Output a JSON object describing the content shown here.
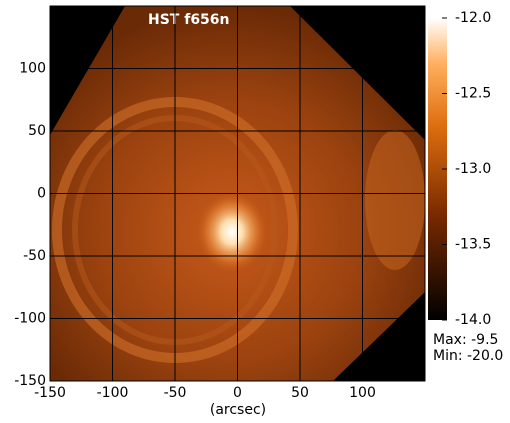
{
  "chart_data": {
    "type": "image",
    "title": "HST f656n",
    "xlabel": "(arcsec)",
    "xlim": [
      -150,
      150
    ],
    "ylim": [
      -150,
      150
    ],
    "xticks": [
      -150,
      -100,
      -50,
      0,
      50,
      100
    ],
    "yticks": [
      -150,
      -100,
      -50,
      0,
      50,
      100
    ],
    "grid": true,
    "clim": [
      -14,
      -12
    ],
    "cticks": [
      {
        "value": -12,
        "label": "-12.0"
      },
      {
        "value": -12.5,
        "label": "-12.5"
      },
      {
        "value": -13,
        "label": "-13.0"
      },
      {
        "value": -13.5,
        "label": "-13.5"
      },
      {
        "value": -14,
        "label": "-14.0"
      }
    ],
    "annotations": [
      "Max: -9.5",
      "Min: -20.0"
    ]
  }
}
